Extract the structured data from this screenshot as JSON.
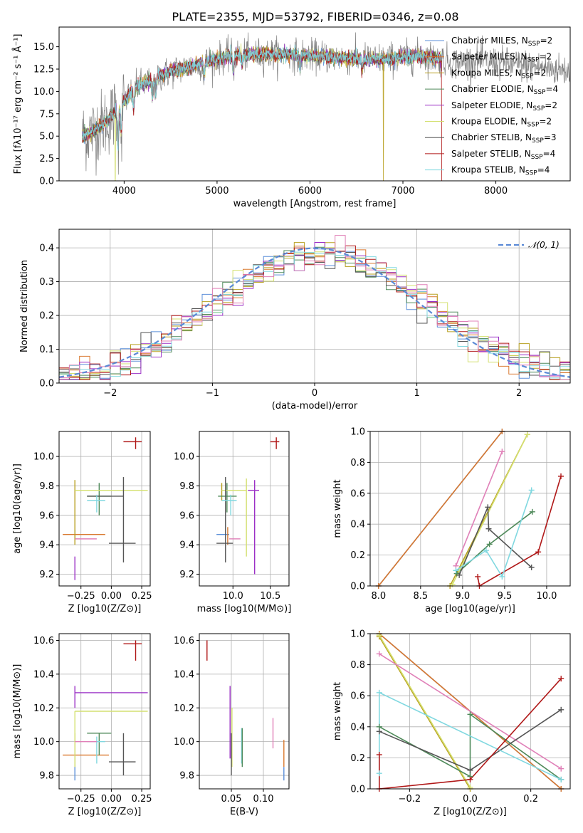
{
  "figure_title": "PLATE=2355, MJD=53792, FIBERID=0346, z=0.08",
  "colors": {
    "Chabrier MILES": "#5b8fd9",
    "Salpeter MILES": "#d9782e",
    "Kroupa MILES": "#b8a020",
    "Chabrier ELODIE": "#4f8a5a",
    "Salpeter ELODIE": "#9b30c6",
    "Kroupa ELODIE": "#d4e070",
    "Chabrier STELIB": "#555555",
    "Salpeter STELIB": "#b01818",
    "Kroupa STELIB": "#80d8e0",
    "extra_pink": "#e080b8",
    "normal": "#5b8ad6"
  },
  "chart_data": [
    {
      "type": "line",
      "title": "PLATE=2355, MJD=53792, FIBERID=0346, z=0.08",
      "xlabel": "wavelength [Angstrom, rest frame]",
      "ylabel": "Flux [f_λ 10^-17 erg cm^-2 s^-1 A^-1]",
      "xlim": [
        3300,
        8800
      ],
      "ylim": [
        0,
        17.2
      ],
      "xticks": [
        4000,
        5000,
        6000,
        7000,
        8000
      ],
      "yticks": [
        0.0,
        2.5,
        5.0,
        7.5,
        10.0,
        12.5,
        15.0
      ],
      "legend_position": "upper right",
      "legend": [
        {
          "name": "Chabrier MILES, N_SSP=2",
          "color": "#5b8fd9"
        },
        {
          "name": "Salpeter MILES, N_SSP=2",
          "color": "#d9782e"
        },
        {
          "name": "Kroupa MILES, N_SSP=2",
          "color": "#b8a020"
        },
        {
          "name": "Chabrier ELODIE, N_SSP=4",
          "color": "#4f8a5a"
        },
        {
          "name": "Salpeter ELODIE, N_SSP=2",
          "color": "#9b30c6"
        },
        {
          "name": "Kroupa ELODIE, N_SSP=2",
          "color": "#d4e070"
        },
        {
          "name": "Chabrier STELIB, N_SSP=3",
          "color": "#555555"
        },
        {
          "name": "Salpeter STELIB, N_SSP=4",
          "color": "#b01818"
        },
        {
          "name": "Kroupa STELIB, N_SSP=4",
          "color": "#80d8e0"
        }
      ],
      "continuum": {
        "x": [
          3550,
          3650,
          3750,
          3850,
          3950,
          4050,
          4150,
          4250,
          4350,
          4450,
          4550,
          4650,
          4750,
          4850,
          4950,
          5050,
          5150,
          5250,
          5400,
          5600,
          5800,
          6000,
          6200,
          6400,
          6600,
          6800,
          7000,
          7200,
          7400,
          7600,
          7800,
          8000,
          8200,
          8400,
          8600,
          8800
        ],
        "y": [
          5.0,
          5.5,
          6.2,
          7.0,
          8.3,
          9.6,
          10.6,
          11.0,
          11.6,
          12.0,
          12.4,
          12.6,
          12.9,
          13.2,
          13.5,
          13.8,
          14.0,
          14.1,
          14.1,
          14.2,
          14.1,
          14.0,
          13.9,
          13.7,
          13.6,
          13.6,
          13.8,
          14.0,
          13.6,
          13.2,
          13.5,
          13.2,
          13.0,
          12.8,
          12.5,
          12.3
        ]
      },
      "absorption_lines": [
        {
          "x": 3934,
          "depth": 4.0
        },
        {
          "x": 3969,
          "depth": 3.0
        },
        {
          "x": 4102,
          "depth": 2.0
        },
        {
          "x": 4304,
          "depth": 2.0
        },
        {
          "x": 4340,
          "depth": 2.0
        },
        {
          "x": 4861,
          "depth": 1.5
        },
        {
          "x": 5175,
          "depth": 2.0
        },
        {
          "x": 5270,
          "depth": 1.0
        },
        {
          "x": 5893,
          "depth": 1.5
        },
        {
          "x": 6563,
          "depth": 1.2
        }
      ],
      "outlier_drops": [
        {
          "x": 3905,
          "min": 0.0,
          "series": "Kroupa ELODIE"
        },
        {
          "x": 6790,
          "min": 0.0,
          "series": "Kroupa MILES"
        },
        {
          "x": 7420,
          "min": 0.0,
          "series": "Salpeter STELIB"
        }
      ],
      "model_range": [
        3550,
        7420
      ],
      "data_range": [
        3550,
        8800
      ]
    },
    {
      "type": "histogram",
      "xlabel": "(data-model)/error",
      "ylabel": "Normed distribution",
      "xlim": [
        -2.5,
        2.5
      ],
      "ylim": [
        0,
        0.455
      ],
      "xticks": [
        -2,
        -1,
        0,
        1,
        2
      ],
      "yticks": [
        0.0,
        0.1,
        0.2,
        0.3,
        0.4
      ],
      "legend_position": "upper right",
      "legend": [
        {
          "name": "N(0,1)",
          "color": "#5b8ad6",
          "style": "dashed"
        }
      ],
      "normal": {
        "mu": 0,
        "sigma": 1
      },
      "bin_width": 0.1,
      "bin_range": [
        -2.6,
        2.6
      ]
    },
    {
      "type": "errorbar",
      "xlabel": "Z [log10(Z/Z⊙)]",
      "ylabel": "age [log10(age/yr)]",
      "xlim": [
        -0.43,
        0.32
      ],
      "ylim": [
        9.12,
        10.17
      ],
      "xticks": [
        -0.25,
        0.0,
        0.25
      ],
      "xticklabels": [
        "−0.25",
        "0.00",
        "0.25"
      ],
      "yticks": [
        9.2,
        9.4,
        9.6,
        9.8,
        10.0
      ],
      "points": [
        {
          "color": "#5b8fd9",
          "x": -0.3,
          "xlo": -0.3,
          "xhi": -0.3,
          "y": 9.47,
          "ylo": 9.44,
          "yhi": 9.5
        },
        {
          "color": "#d9782e",
          "x": -0.3,
          "xlo": -0.4,
          "xhi": -0.05,
          "y": 9.47,
          "ylo": 9.47,
          "yhi": 9.47
        },
        {
          "color": "#b8a020",
          "x": -0.3,
          "xlo": -0.3,
          "xhi": -0.3,
          "y": 9.77,
          "ylo": 9.4,
          "yhi": 9.84
        },
        {
          "color": "#4f8a5a",
          "x": -0.1,
          "xlo": -0.2,
          "xhi": 0.0,
          "y": 9.73,
          "ylo": 9.6,
          "yhi": 9.82
        },
        {
          "color": "#9b30c6",
          "x": -0.3,
          "xlo": -0.3,
          "xhi": -0.3,
          "y": 9.2,
          "ylo": 9.16,
          "yhi": 9.32
        },
        {
          "color": "#d4e070",
          "x": -0.3,
          "xlo": -0.3,
          "xhi": 0.3,
          "y": 9.77,
          "ylo": 9.77,
          "yhi": 9.77
        },
        {
          "color": "#555555",
          "x": 0.1,
          "xlo": -0.2,
          "xhi": 0.1,
          "y": 9.73,
          "ylo": 9.28,
          "yhi": 9.86
        },
        {
          "color": "#555555",
          "x": 0.1,
          "xlo": -0.02,
          "xhi": 0.2,
          "y": 9.41,
          "ylo": 9.41,
          "yhi": 9.41
        },
        {
          "color": "#b01818",
          "x": 0.2,
          "xlo": 0.1,
          "xhi": 0.25,
          "y": 10.1,
          "ylo": 10.05,
          "yhi": 10.13
        },
        {
          "color": "#80d8e0",
          "x": -0.12,
          "xlo": -0.2,
          "xhi": -0.05,
          "y": 9.7,
          "ylo": 9.62,
          "yhi": 9.74
        },
        {
          "color": "#e080b8",
          "x": -0.2,
          "xlo": -0.3,
          "xhi": -0.12,
          "y": 9.44,
          "ylo": 9.44,
          "yhi": 9.44
        }
      ]
    },
    {
      "type": "errorbar",
      "xlabel": "mass [log10(M/M⊙)]",
      "ylabel": "",
      "xlim": [
        9.55,
        10.75
      ],
      "ylim": [
        9.12,
        10.17
      ],
      "xticks": [
        10.0,
        10.5
      ],
      "xticklabels": [
        "10.0",
        "10.5"
      ],
      "yticks": [
        9.2,
        9.4,
        9.6,
        9.8,
        10.0
      ],
      "points": [
        {
          "color": "#5b8fd9",
          "x": 9.85,
          "xlo": 9.78,
          "xhi": 9.95,
          "y": 9.47,
          "ylo": 9.47,
          "yhi": 9.47
        },
        {
          "color": "#d9782e",
          "x": 9.93,
          "xlo": 9.93,
          "xhi": 9.93,
          "y": 9.47,
          "ylo": 9.4,
          "yhi": 9.52
        },
        {
          "color": "#b8a020",
          "x": 9.85,
          "xlo": 9.85,
          "xhi": 9.85,
          "y": 9.77,
          "ylo": 9.7,
          "yhi": 9.82
        },
        {
          "color": "#4f8a5a",
          "x": 9.92,
          "xlo": 9.8,
          "xhi": 10.05,
          "y": 9.73,
          "ylo": 9.62,
          "yhi": 9.82
        },
        {
          "color": "#9b30c6",
          "x": 10.29,
          "xlo": 10.2,
          "xhi": 10.35,
          "y": 9.77,
          "ylo": 9.2,
          "yhi": 9.84
        },
        {
          "color": "#d4e070",
          "x": 10.18,
          "xlo": 9.85,
          "xhi": 10.18,
          "y": 9.77,
          "ylo": 9.32,
          "yhi": 9.85
        },
        {
          "color": "#555555",
          "x": 9.9,
          "xlo": 9.78,
          "xhi": 10.0,
          "y": 9.41,
          "ylo": 9.28,
          "yhi": 9.86
        },
        {
          "color": "#b01818",
          "x": 10.58,
          "xlo": 10.5,
          "xhi": 10.62,
          "y": 10.1,
          "ylo": 10.05,
          "yhi": 10.13
        },
        {
          "color": "#80d8e0",
          "x": 9.97,
          "xlo": 9.85,
          "xhi": 10.05,
          "y": 9.7,
          "ylo": 9.6,
          "yhi": 9.74
        },
        {
          "color": "#e080b8",
          "x": 10.02,
          "xlo": 9.95,
          "xhi": 10.1,
          "y": 9.44,
          "ylo": 9.44,
          "yhi": 9.44
        }
      ]
    },
    {
      "type": "line",
      "xlabel": "age [log10(age/yr)]",
      "ylabel": "mass weight",
      "xlim": [
        7.9,
        10.28
      ],
      "ylim": [
        0,
        1
      ],
      "xticks": [
        8.0,
        8.5,
        9.0,
        9.5,
        10.0
      ],
      "xticklabels": [
        "8.0",
        "8.5",
        "9.0",
        "9.5",
        "10.0"
      ],
      "yticks": [
        0.0,
        0.2,
        0.4,
        0.6,
        0.8,
        1.0
      ],
      "yticklabels": [
        "0.0",
        "0.2",
        "0.4",
        "0.6",
        "0.8",
        "1.0"
      ],
      "series": [
        {
          "color": "#5b8fd9",
          "x": [
            8.0,
            9.47
          ],
          "y": [
            0.0,
            1.0
          ]
        },
        {
          "color": "#d9782e",
          "x": [
            8.0,
            9.47
          ],
          "y": [
            0.0,
            1.0
          ]
        },
        {
          "color": "#b8a020",
          "x": [
            8.85,
            9.77
          ],
          "y": [
            0.0,
            0.98
          ]
        },
        {
          "color": "#4f8a5a",
          "x": [
            8.93,
            9.32,
            9.83
          ],
          "y": [
            0.08,
            0.27,
            0.48
          ]
        },
        {
          "color": "#e080b8",
          "x": [
            8.92,
            9.47
          ],
          "y": [
            0.13,
            0.87
          ]
        },
        {
          "color": "#d4e070",
          "x": [
            8.88,
            9.77
          ],
          "y": [
            0.01,
            0.98
          ]
        },
        {
          "color": "#555555",
          "x": [
            8.96,
            9.3,
            9.31,
            9.82
          ],
          "y": [
            0.07,
            0.51,
            0.37,
            0.12
          ]
        },
        {
          "color": "#b01818",
          "x": [
            9.18,
            9.2,
            9.9,
            10.17
          ],
          "y": [
            0.06,
            0.0,
            0.22,
            0.71
          ]
        },
        {
          "color": "#80d8e0",
          "x": [
            8.92,
            9.28,
            9.47,
            9.82
          ],
          "y": [
            0.1,
            0.23,
            0.06,
            0.62
          ]
        }
      ]
    },
    {
      "type": "errorbar",
      "xlabel": "Z [log10(Z/Z⊙)]",
      "ylabel": "mass [log10(M/M⊙)]",
      "xlim": [
        -0.43,
        0.32
      ],
      "ylim": [
        9.72,
        10.64
      ],
      "xticks": [
        -0.25,
        0.0,
        0.25
      ],
      "xticklabels": [
        "−0.25",
        "0.00",
        "0.25"
      ],
      "yticks": [
        9.8,
        10.0,
        10.2,
        10.4,
        10.6
      ],
      "points": [
        {
          "color": "#5b8fd9",
          "x": -0.3,
          "xlo": -0.3,
          "xhi": -0.3,
          "y": 9.85,
          "ylo": 9.77,
          "yhi": 9.92
        },
        {
          "color": "#d9782e",
          "x": -0.3,
          "xlo": -0.4,
          "xhi": -0.02,
          "y": 9.92,
          "ylo": 9.92,
          "yhi": 9.92
        },
        {
          "color": "#b8a020",
          "x": -0.3,
          "xlo": -0.3,
          "xhi": -0.3,
          "y": 9.9,
          "ylo": 9.85,
          "yhi": 10.05
        },
        {
          "color": "#4f8a5a",
          "x": -0.1,
          "xlo": -0.2,
          "xhi": 0.0,
          "y": 10.05,
          "ylo": 9.92,
          "yhi": 10.05
        },
        {
          "color": "#9b30c6",
          "x": -0.3,
          "xlo": -0.3,
          "xhi": 0.3,
          "y": 10.29,
          "ylo": 10.2,
          "yhi": 10.33
        },
        {
          "color": "#d4e070",
          "x": -0.3,
          "xlo": -0.3,
          "xhi": 0.3,
          "y": 10.18,
          "ylo": 9.85,
          "yhi": 10.18
        },
        {
          "color": "#555555",
          "x": 0.1,
          "xlo": -0.02,
          "xhi": 0.2,
          "y": 9.88,
          "ylo": 9.8,
          "yhi": 10.05
        },
        {
          "color": "#b01818",
          "x": 0.2,
          "xlo": 0.1,
          "xhi": 0.25,
          "y": 10.58,
          "ylo": 10.48,
          "yhi": 10.6
        },
        {
          "color": "#80d8e0",
          "x": -0.12,
          "xlo": -0.2,
          "xhi": -0.05,
          "y": 10.0,
          "ylo": 9.87,
          "yhi": 10.03
        },
        {
          "color": "#e080b8",
          "x": -0.2,
          "xlo": -0.3,
          "xhi": -0.12,
          "y": 10.0,
          "ylo": 10.0,
          "yhi": 10.0
        }
      ]
    },
    {
      "type": "errorbar",
      "xlabel": "E(B-V)",
      "ylabel": "",
      "xlim": [
        0.0,
        0.14
      ],
      "ylim": [
        9.72,
        10.64
      ],
      "xticks": [
        0.05,
        0.1
      ],
      "xticklabels": [
        "0.05",
        "0.10"
      ],
      "yticks": [
        9.8,
        10.0,
        10.2,
        10.4,
        10.6
      ],
      "points": [
        {
          "color": "#b01818",
          "x": 0.012,
          "xlo": 0.012,
          "xhi": 0.012,
          "y": 10.55,
          "ylo": 10.48,
          "yhi": 10.6
        },
        {
          "color": "#9b30c6",
          "x": 0.048,
          "xlo": 0.048,
          "xhi": 0.048,
          "y": 10.2,
          "ylo": 9.9,
          "yhi": 10.33
        },
        {
          "color": "#d4e070",
          "x": 0.051,
          "xlo": 0.051,
          "xhi": 0.051,
          "y": 10.1,
          "ylo": 9.85,
          "yhi": 10.2
        },
        {
          "color": "#555555",
          "x": 0.05,
          "xlo": 0.05,
          "xhi": 0.05,
          "y": 9.95,
          "ylo": 9.8,
          "yhi": 10.05
        },
        {
          "color": "#80d8e0",
          "x": 0.066,
          "xlo": 0.066,
          "xhi": 0.066,
          "y": 10.0,
          "ylo": 9.87,
          "yhi": 10.08
        },
        {
          "color": "#4f8a5a",
          "x": 0.067,
          "xlo": 0.067,
          "xhi": 0.067,
          "y": 9.95,
          "ylo": 9.85,
          "yhi": 10.08
        },
        {
          "color": "#e080b8",
          "x": 0.115,
          "xlo": 0.115,
          "xhi": 0.115,
          "y": 10.05,
          "ylo": 9.96,
          "yhi": 10.14
        },
        {
          "color": "#d9782e",
          "x": 0.132,
          "xlo": 0.132,
          "xhi": 0.132,
          "y": 9.92,
          "ylo": 9.85,
          "yhi": 10.01
        },
        {
          "color": "#5b8fd9",
          "x": 0.132,
          "xlo": 0.132,
          "xhi": 0.132,
          "y": 9.8,
          "ylo": 9.77,
          "yhi": 9.85
        }
      ]
    },
    {
      "type": "line",
      "xlabel": "Z [log10(Z/Z⊙)]",
      "ylabel": "mass weight",
      "xlim": [
        -0.33,
        0.33
      ],
      "ylim": [
        0,
        1
      ],
      "xticks": [
        -0.2,
        0.0,
        0.2
      ],
      "xticklabels": [
        "−0.2",
        "0.0",
        "0.2"
      ],
      "yticks": [
        0.0,
        0.2,
        0.4,
        0.6,
        0.8,
        1.0
      ],
      "yticklabels": [
        "0.0",
        "0.2",
        "0.4",
        "0.6",
        "0.8",
        "1.0"
      ],
      "series": [
        {
          "color": "#5b8fd9",
          "x": [
            -0.3,
            0.3
          ],
          "y": [
            1.0,
            0.0
          ]
        },
        {
          "color": "#d9782e",
          "x": [
            -0.3,
            0.3
          ],
          "y": [
            1.0,
            0.0
          ]
        },
        {
          "color": "#b8a020",
          "x": [
            -0.3,
            0.0
          ],
          "y": [
            0.98,
            0.0
          ]
        },
        {
          "color": "#d4e070",
          "x": [
            -0.3,
            0.0
          ],
          "y": [
            0.99,
            0.01
          ]
        },
        {
          "color": "#e080b8",
          "x": [
            -0.3,
            0.3
          ],
          "y": [
            0.87,
            0.13
          ]
        },
        {
          "color": "#4f8a5a",
          "x": [
            -0.3,
            0.0,
            0.0,
            0.3
          ],
          "y": [
            0.4,
            0.08,
            0.48,
            0.06
          ]
        },
        {
          "color": "#555555",
          "x": [
            -0.3,
            0.0,
            0.3
          ],
          "y": [
            0.37,
            0.12,
            0.51
          ]
        },
        {
          "color": "#80d8e0",
          "x": [
            -0.3,
            -0.3,
            0.3
          ],
          "y": [
            0.1,
            0.62,
            0.06
          ]
        },
        {
          "color": "#b01818",
          "x": [
            -0.3,
            -0.3,
            0.0,
            0.3
          ],
          "y": [
            0.22,
            0.0,
            0.06,
            0.71
          ]
        }
      ]
    }
  ]
}
